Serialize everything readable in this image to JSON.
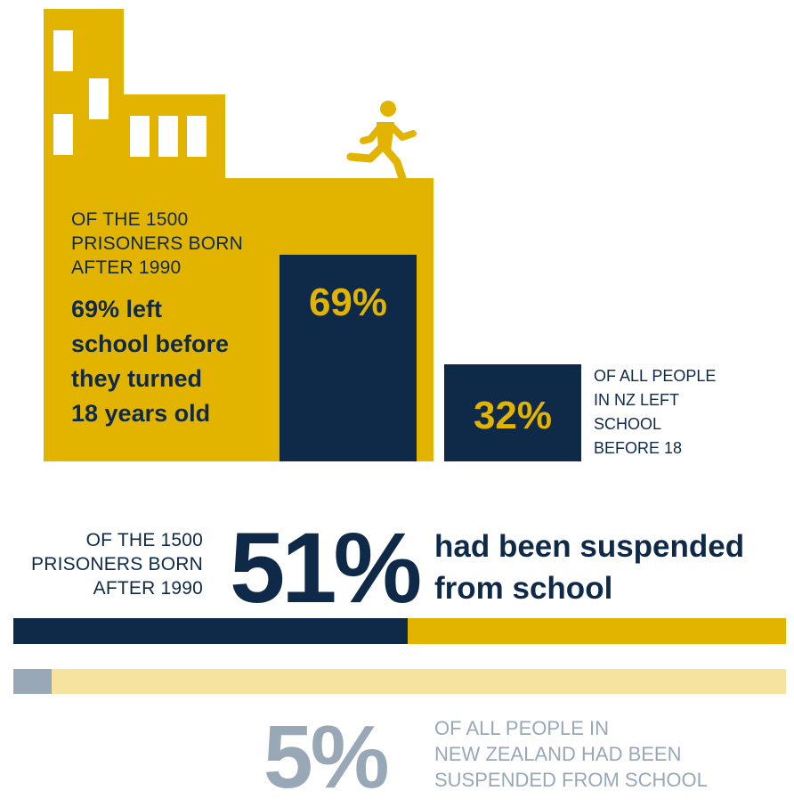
{
  "colors": {
    "gold": "#e2b400",
    "navy": "#0f2a48",
    "grey": "#98a8b6",
    "pale_gold": "#f6e39f"
  },
  "left_school": {
    "context_lines": [
      "OF THE 1500",
      "PRISONERS BORN",
      "AFTER 1990"
    ],
    "headline_lines": [
      "69% left",
      "school before",
      "they turned",
      "18 years old"
    ],
    "prisoners_value_label": "69%",
    "prisoners_value": 69,
    "nz_value_label": "32%",
    "nz_value": 32,
    "nz_lines": [
      "OF ALL PEOPLE",
      "IN NZ LEFT",
      "SCHOOL",
      "BEFORE 18"
    ],
    "icon": "running-person-icon"
  },
  "suspended": {
    "context_lines": [
      "OF THE 1500",
      "PRISONERS BORN",
      "AFTER 1990"
    ],
    "prisoners_value_label": "51%",
    "prisoners_value": 51,
    "headline_lines": [
      "had been suspended",
      "from school"
    ],
    "nz_value_label": "5%",
    "nz_value": 5,
    "nz_lines": [
      "OF ALL PEOPLE IN",
      "NEW ZEALAND HAD BEEN",
      "SUSPENDED FROM SCHOOL"
    ]
  }
}
